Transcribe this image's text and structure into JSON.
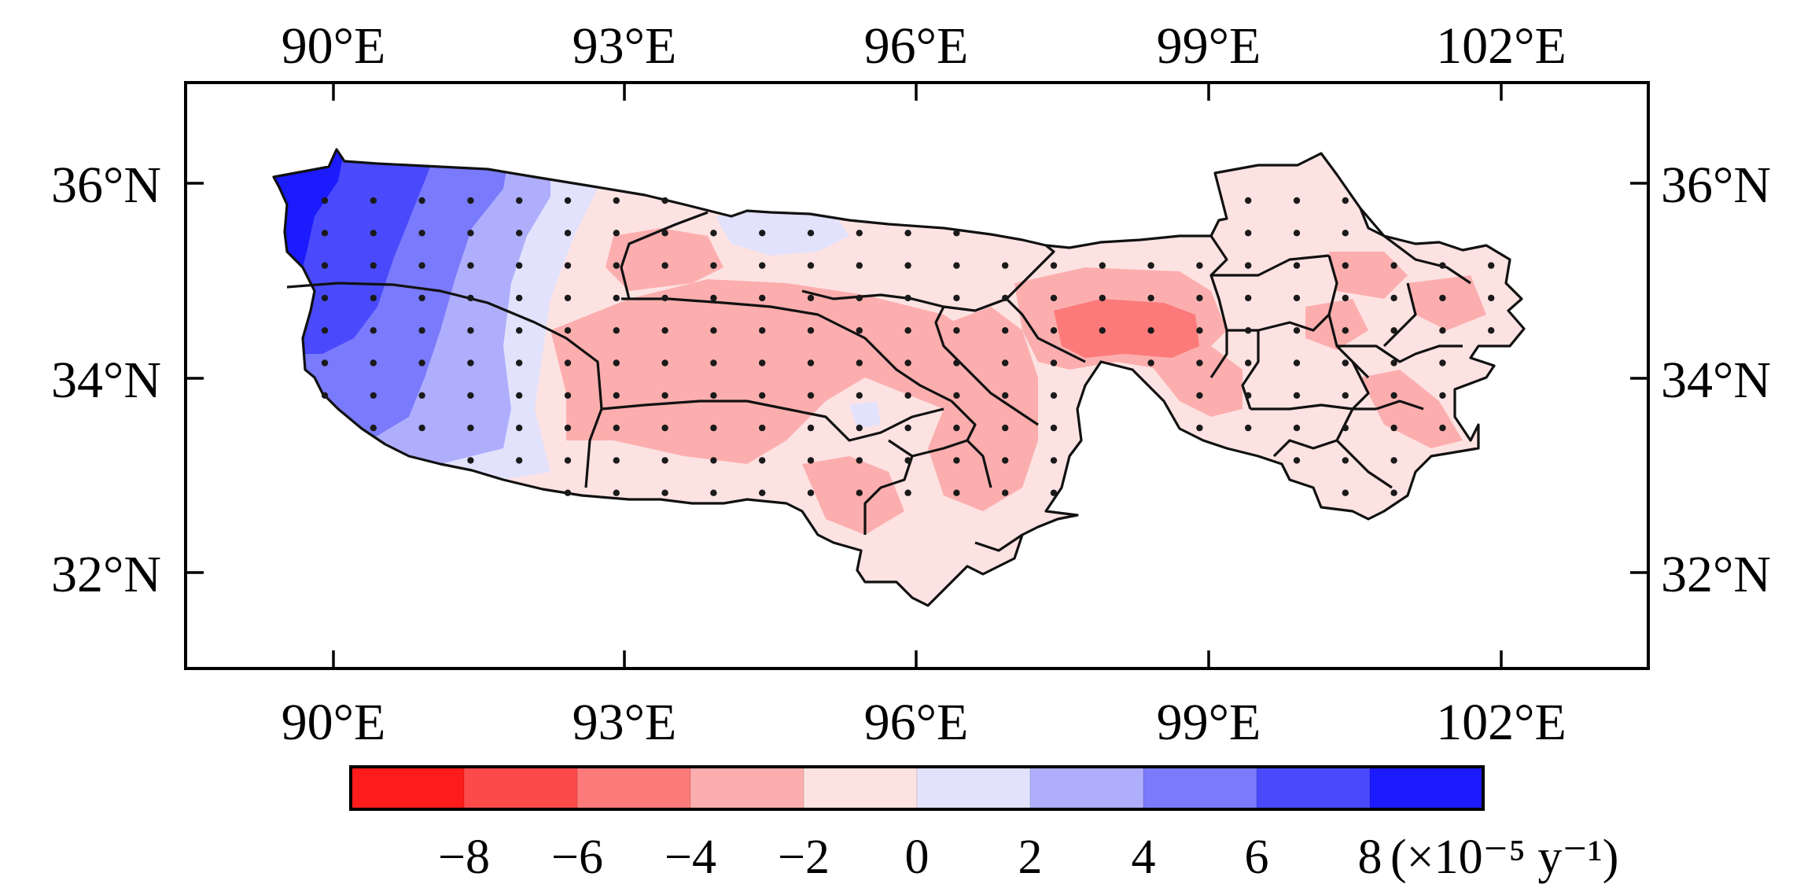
{
  "map": {
    "x_axis": {
      "top_labels": [
        "90°E",
        "93°E",
        "96°E",
        "99°E",
        "102°E"
      ],
      "bottom_labels": [
        "90°E",
        "93°E",
        "96°E",
        "99°E",
        "102°E"
      ],
      "values": [
        90,
        93,
        96,
        99,
        102
      ]
    },
    "y_axis": {
      "left_labels": [
        "36°N",
        "34°N",
        "32°N"
      ],
      "right_labels": [
        "36°N",
        "34°N",
        "32°N"
      ],
      "values": [
        36,
        34,
        32
      ]
    },
    "extent": {
      "lon": [
        88.5,
        103.5
      ],
      "lat": [
        31,
        37
      ]
    },
    "significance_marker": "dot",
    "colorbar": {
      "ticks": [
        "−8",
        "−6",
        "−4",
        "−2",
        "0",
        "2",
        "4",
        "6",
        "8"
      ],
      "unit": "(×10⁻⁵ y⁻¹)",
      "colors": [
        "#fe1b1b",
        "#fc4a4a",
        "#fc7a7a",
        "#fcaeae",
        "#fde2e2",
        "#e2e2fd",
        "#aeaefc",
        "#7a7afc",
        "#4a4afc",
        "#1b1bfe"
      ]
    }
  },
  "chart_data": {
    "type": "heatmap",
    "title": "",
    "xlabel": "",
    "ylabel": "",
    "xlim": [
      88.5,
      103.5
    ],
    "ylim": [
      31,
      37
    ],
    "x_ticks": [
      "90°E",
      "93°E",
      "96°E",
      "99°E",
      "102°E"
    ],
    "y_ticks": [
      "36°N",
      "34°N",
      "32°N"
    ],
    "colorbar_ticks": [
      -8,
      -6,
      -4,
      -2,
      0,
      2,
      4,
      6,
      8
    ],
    "colorbar_unit": "(×10⁻⁵ y⁻¹)",
    "regions": [
      {
        "area": "far west, north",
        "lon": 89.8,
        "lat": 35.6,
        "value_class": "> 8"
      },
      {
        "area": "far west, south",
        "lon": 89.8,
        "lat": 34.5,
        "value_class": "6 to 8"
      },
      {
        "area": "west",
        "lon": 90.8,
        "lat": 34.5,
        "value_class": "4 to 6"
      },
      {
        "area": "west-central",
        "lon": 91.4,
        "lat": 34.0,
        "value_class": "2 to 4"
      },
      {
        "area": "west-central east",
        "lon": 92.0,
        "lat": 34.0,
        "value_class": "0 to 2"
      },
      {
        "area": "central",
        "lon": 93.8,
        "lat": 34.0,
        "value_class": "-4 to -2"
      },
      {
        "area": "central east",
        "lon": 96.5,
        "lat": 34.0,
        "value_class": "-4 to -2"
      },
      {
        "area": "east-central core",
        "lon": 98.3,
        "lat": 34.4,
        "value_class": "-6 to -4"
      },
      {
        "area": "east",
        "lon": 100.5,
        "lat": 34.5,
        "value_class": "-2 to 0"
      },
      {
        "area": "northern strip near 95E",
        "lon": 95.0,
        "lat": 35.6,
        "value_class": "0 to 2"
      }
    ]
  }
}
